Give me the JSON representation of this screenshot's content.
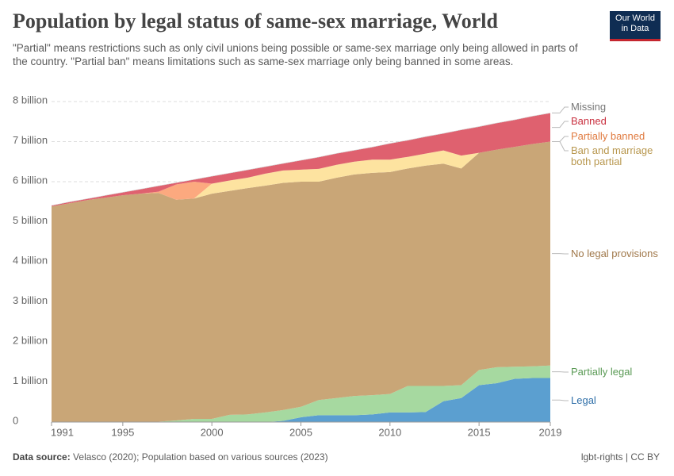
{
  "chart_data": {
    "type": "stacked-area",
    "title": "Population by legal status of same-sex marriage, World",
    "subtitle": "\"Partial\" means restrictions such as only civil unions being possible or same-sex marriage only being allowed in parts of the country. \"Partial ban\" means limitations such as same-sex marriage only being banned in some areas.",
    "x": [
      1991,
      1992,
      1993,
      1994,
      1995,
      1996,
      1997,
      1998,
      1999,
      2000,
      2001,
      2002,
      2003,
      2004,
      2005,
      2006,
      2007,
      2008,
      2009,
      2010,
      2011,
      2012,
      2013,
      2014,
      2015,
      2016,
      2017,
      2018,
      2019
    ],
    "xlim": [
      1991,
      2019
    ],
    "xticks": [
      1991,
      1995,
      2000,
      2005,
      2010,
      2015,
      2019
    ],
    "ylim": [
      0,
      8
    ],
    "yticks": [
      0,
      {
        "value": 1,
        "label": "1 billion"
      },
      {
        "value": 2,
        "label": "2 billion"
      },
      {
        "value": 3,
        "label": "3 billion"
      },
      {
        "value": 4,
        "label": "4 billion"
      },
      {
        "value": 5,
        "label": "5 billion"
      },
      {
        "value": 6,
        "label": "6 billion"
      },
      {
        "value": 7,
        "label": "7 billion"
      },
      {
        "value": 8,
        "label": "8 billion"
      }
    ],
    "grid": true,
    "series": [
      {
        "name": "Legal",
        "color": "#5b9fd0",
        "label_color": "#2f6fa8",
        "values": [
          0,
          0,
          0,
          0,
          0,
          0,
          0,
          0,
          0,
          0,
          0,
          0,
          0,
          0.03,
          0.12,
          0.17,
          0.17,
          0.17,
          0.19,
          0.24,
          0.24,
          0.25,
          0.52,
          0.6,
          0.92,
          0.97,
          1.08,
          1.1,
          1.1
        ]
      },
      {
        "name": "Partially legal",
        "color": "#a6d9a0",
        "label_color": "#5a9a55",
        "values": [
          0,
          0,
          0,
          0,
          0,
          0,
          0.01,
          0.04,
          0.08,
          0.08,
          0.18,
          0.19,
          0.24,
          0.27,
          0.26,
          0.38,
          0.43,
          0.48,
          0.48,
          0.46,
          0.66,
          0.65,
          0.38,
          0.32,
          0.38,
          0.4,
          0.3,
          0.29,
          0.31
        ]
      },
      {
        "name": "No legal provisions",
        "color": "#c9a677",
        "label_color": "#a0784a",
        "values": [
          5.38,
          5.46,
          5.54,
          5.6,
          5.66,
          5.7,
          5.71,
          5.51,
          5.5,
          5.62,
          5.59,
          5.65,
          5.66,
          5.67,
          5.62,
          5.45,
          5.5,
          5.53,
          5.55,
          5.54,
          5.43,
          5.5,
          5.55,
          5.41,
          5.42,
          5.43,
          5.49,
          5.55,
          5.59
        ]
      },
      {
        "name": "Ban and marriage both partial",
        "color": "#fde3a0",
        "label_color": "#b8974e",
        "values": [
          0,
          0,
          0,
          0,
          0,
          0,
          0,
          0,
          0,
          0.25,
          0.26,
          0.26,
          0.3,
          0.31,
          0.3,
          0.32,
          0.32,
          0.32,
          0.33,
          0.31,
          0.29,
          0.3,
          0.33,
          0.32,
          0,
          0,
          0,
          0,
          0
        ]
      },
      {
        "name": "Partially banned",
        "color": "#fca97f",
        "label_color": "#e07a3f",
        "values": [
          0,
          0,
          0,
          0,
          0,
          0,
          0.03,
          0.38,
          0.42,
          0,
          0,
          0,
          0,
          0,
          0,
          0,
          0,
          0,
          0,
          0,
          0,
          0,
          0,
          0,
          0,
          0,
          0,
          0,
          0
        ]
      },
      {
        "name": "Banned",
        "color": "#df616f",
        "label_color": "#c9303f",
        "values": [
          0.02,
          0.03,
          0.03,
          0.05,
          0.07,
          0.11,
          0.14,
          0.04,
          0.05,
          0.18,
          0.18,
          0.19,
          0.17,
          0.17,
          0.23,
          0.29,
          0.28,
          0.28,
          0.31,
          0.4,
          0.41,
          0.42,
          0.42,
          0.64,
          0.65,
          0.66,
          0.67,
          0.69,
          0.71
        ]
      },
      {
        "name": "Missing",
        "color": "#cccccc",
        "label_color": "#777777",
        "values": [
          0.01,
          0.01,
          0.01,
          0.01,
          0.01,
          0.01,
          0.01,
          0.01,
          0.01,
          0.01,
          0.01,
          0.01,
          0.01,
          0.01,
          0.01,
          0.01,
          0.01,
          0.01,
          0.01,
          0.01,
          0.01,
          0.01,
          0.01,
          0.01,
          0.01,
          0.01,
          0.01,
          0.01,
          0.01
        ]
      }
    ]
  },
  "logo": {
    "line1": "Our World",
    "line2": "in Data"
  },
  "footer": {
    "source_label": "Data source:",
    "source": "Velasco (2020); Population based on various sources (2023)",
    "license": "lgbt-rights | CC BY"
  }
}
